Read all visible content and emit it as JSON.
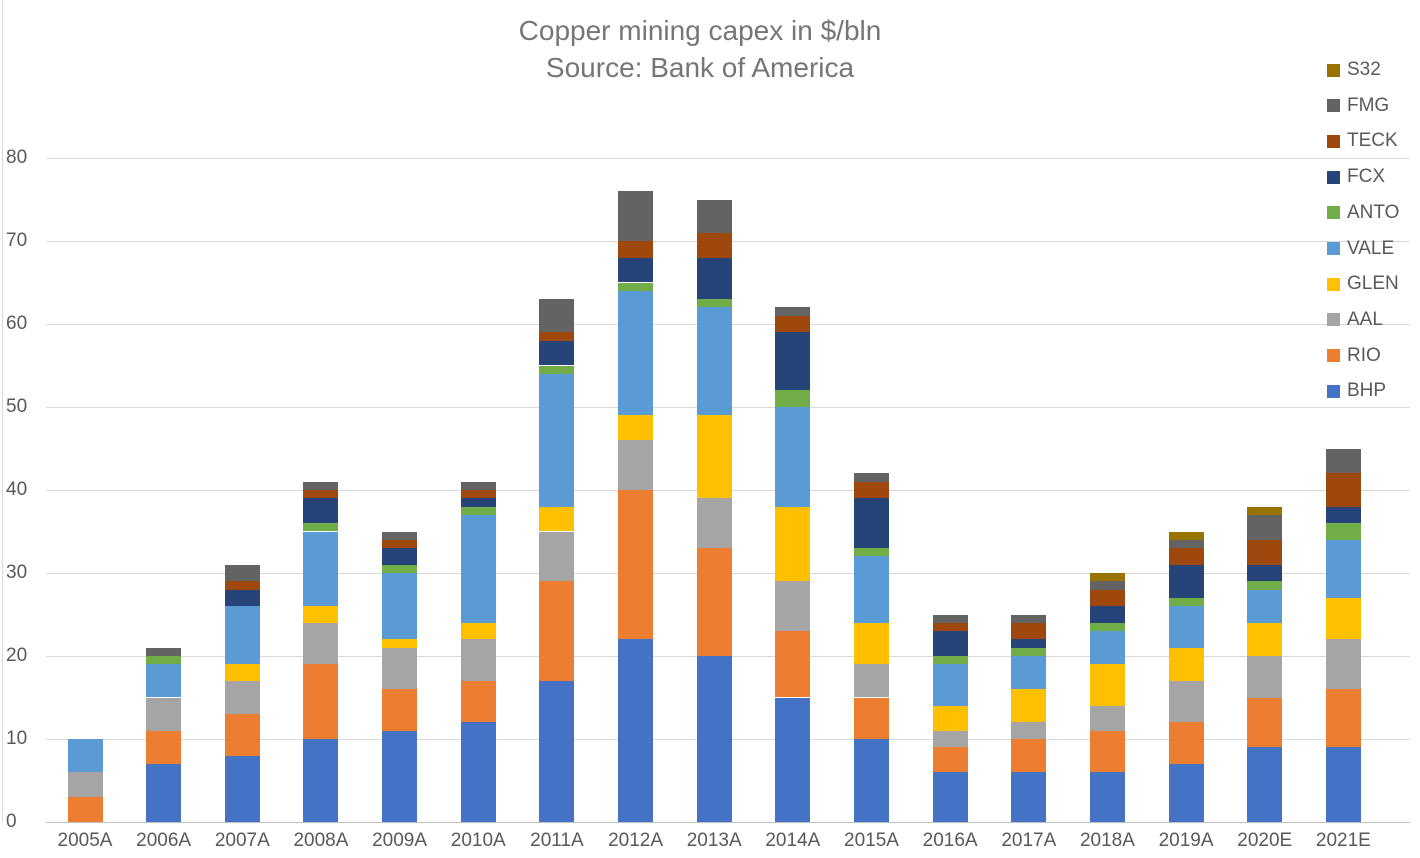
{
  "title": {
    "line1": "Copper mining capex in $/bln",
    "line2": "Source: Bank of America"
  },
  "chart_data": {
    "type": "bar",
    "stacked": true,
    "title": "Copper mining capex in $/bln",
    "subtitle": "Source: Bank of America",
    "categories": [
      "2005A",
      "2006A",
      "2007A",
      "2008A",
      "2009A",
      "2010A",
      "2011A",
      "2012A",
      "2013A",
      "2014A",
      "2015A",
      "2016A",
      "2017A",
      "2018A",
      "2019A",
      "2020E",
      "2021E"
    ],
    "series": [
      {
        "name": "BHP",
        "color": "#4472C4",
        "values": [
          0,
          7,
          8,
          10,
          11,
          12,
          17,
          22,
          20,
          15,
          10,
          6,
          6,
          6,
          7,
          9,
          9
        ]
      },
      {
        "name": "RIO",
        "color": "#ED7D31",
        "values": [
          3,
          4,
          5,
          9,
          5,
          5,
          12,
          18,
          13,
          8,
          5,
          3,
          4,
          5,
          5,
          6,
          7
        ]
      },
      {
        "name": "AAL",
        "color": "#A5A5A5",
        "values": [
          3,
          4,
          4,
          5,
          5,
          5,
          6,
          6,
          6,
          6,
          4,
          2,
          2,
          3,
          5,
          5,
          6
        ]
      },
      {
        "name": "GLEN",
        "color": "#FFC000",
        "values": [
          0,
          0,
          2,
          2,
          1,
          2,
          3,
          3,
          10,
          9,
          5,
          3,
          4,
          5,
          4,
          4,
          5
        ]
      },
      {
        "name": "VALE",
        "color": "#5B9BD5",
        "values": [
          4,
          4,
          7,
          9,
          8,
          13,
          16,
          15,
          13,
          12,
          8,
          5,
          4,
          4,
          5,
          4,
          7
        ]
      },
      {
        "name": "ANTO",
        "color": "#70AD47",
        "values": [
          0,
          1,
          0,
          1,
          1,
          1,
          1,
          1,
          1,
          2,
          1,
          1,
          1,
          1,
          1,
          1,
          2
        ]
      },
      {
        "name": "FCX",
        "color": "#264478",
        "values": [
          0,
          0,
          2,
          3,
          2,
          1,
          3,
          3,
          5,
          7,
          6,
          3,
          1,
          2,
          4,
          2,
          2
        ]
      },
      {
        "name": "TECK",
        "color": "#9E480E",
        "values": [
          0,
          0,
          1,
          1,
          1,
          1,
          1,
          2,
          3,
          2,
          2,
          1,
          2,
          2,
          2,
          3,
          4
        ]
      },
      {
        "name": "FMG",
        "color": "#636363",
        "values": [
          0,
          1,
          2,
          1,
          1,
          1,
          4,
          6,
          4,
          1,
          1,
          1,
          1,
          1,
          1,
          3,
          3
        ]
      },
      {
        "name": "S32",
        "color": "#997300",
        "values": [
          0,
          0,
          0,
          0,
          0,
          0,
          0,
          0,
          0,
          0,
          0,
          0,
          0,
          1,
          1,
          1,
          0
        ]
      }
    ],
    "totals": [
      10,
      21,
      31,
      41,
      35,
      41,
      63,
      76,
      75,
      62,
      42,
      25,
      25,
      30,
      35,
      38,
      45
    ],
    "ylim": [
      0,
      80
    ],
    "y_ticks": [
      0,
      10,
      20,
      30,
      40,
      50,
      60,
      70,
      80
    ],
    "grid": true,
    "legend_position": "right",
    "legend_top_to_bottom": [
      "S32",
      "FMG",
      "TECK",
      "FCX",
      "ANTO",
      "VALE",
      "GLEN",
      "AAL",
      "RIO",
      "BHP"
    ]
  }
}
